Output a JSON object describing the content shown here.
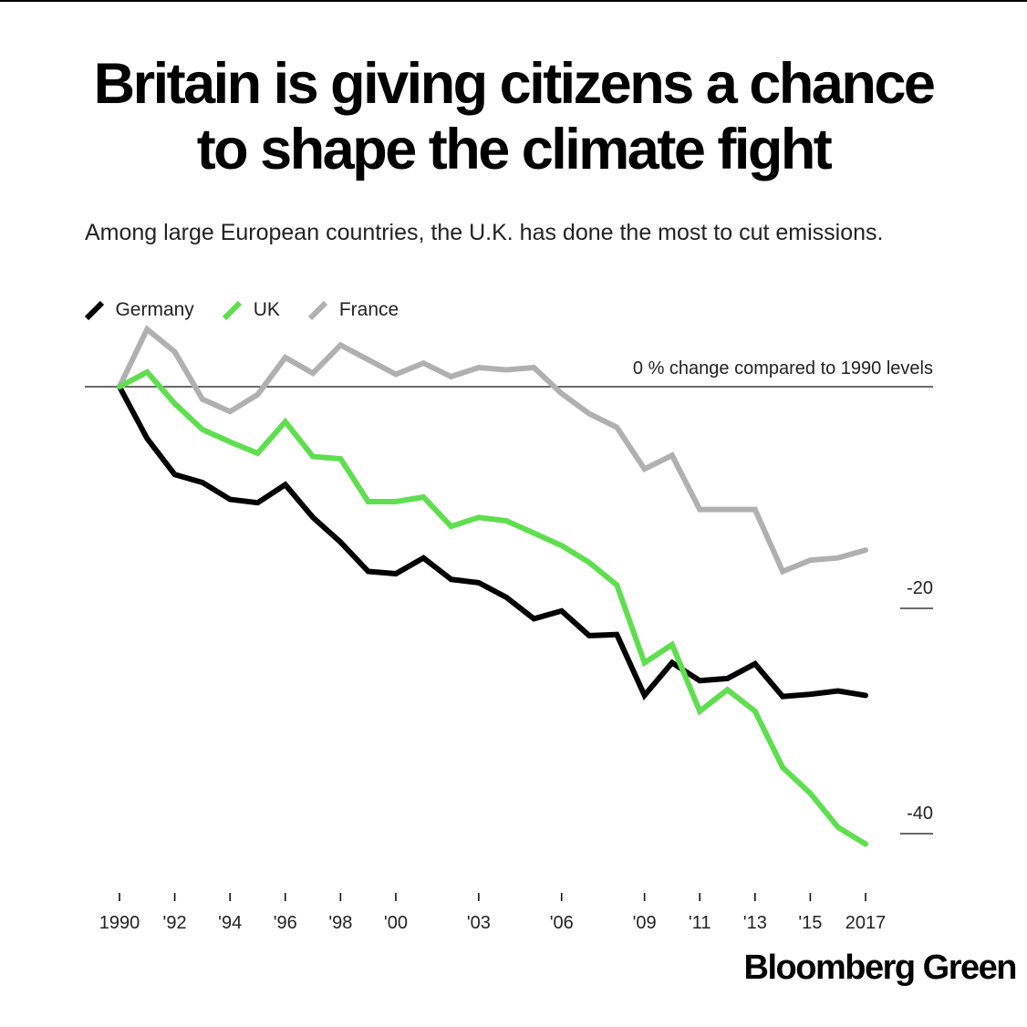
{
  "headline": {
    "line1": "Britain is giving citizens a chance",
    "line2": "to shape the climate fight"
  },
  "subtitle": "Among large European countries, the U.K. has done the most to cut emissions.",
  "brand": "Bloomberg Green",
  "colors": {
    "germany": "#000000",
    "uk": "#5fde4f",
    "france": "#b0b0b0",
    "axis": "#111111"
  },
  "chart_data": {
    "type": "line",
    "x": [
      1990,
      1991,
      1992,
      1993,
      1994,
      1995,
      1996,
      1997,
      1998,
      1999,
      2000,
      2001,
      2002,
      2003,
      2004,
      2005,
      2006,
      2007,
      2008,
      2009,
      2010,
      2011,
      2012,
      2013,
      2014,
      2015,
      2016,
      2017
    ],
    "xticks": [
      {
        "value": 1990,
        "label": "1990"
      },
      {
        "value": 1992,
        "label": "'92"
      },
      {
        "value": 1994,
        "label": "'94"
      },
      {
        "value": 1996,
        "label": "'96"
      },
      {
        "value": 1998,
        "label": "'98"
      },
      {
        "value": 2000,
        "label": "'00"
      },
      {
        "value": 2003,
        "label": "'03"
      },
      {
        "value": 2006,
        "label": "'06"
      },
      {
        "value": 2009,
        "label": "'09"
      },
      {
        "value": 2011,
        "label": "'11"
      },
      {
        "value": 2013,
        "label": "'13"
      },
      {
        "value": 2015,
        "label": "'15"
      },
      {
        "value": 2017,
        "label": "2017"
      }
    ],
    "yticks": [
      {
        "value": -20,
        "label": "-20"
      },
      {
        "value": -40,
        "label": "-40"
      }
    ],
    "ylim": [
      -44,
      5
    ],
    "reference_line": {
      "value": 0,
      "label": "0 % change compared to 1990 levels"
    },
    "legend_position": "top-left",
    "series": [
      {
        "name": "Germany",
        "color_key": "germany",
        "values": [
          0,
          -4.6,
          -7.8,
          -8.5,
          -10.0,
          -10.3,
          -8.7,
          -11.6,
          -13.8,
          -16.4,
          -16.6,
          -15.2,
          -17.1,
          -17.4,
          -18.7,
          -20.6,
          -19.9,
          -22.1,
          -22.0,
          -27.4,
          -24.5,
          -26.1,
          -25.9,
          -24.6,
          -27.5,
          -27.3,
          -27.0,
          -27.4
        ]
      },
      {
        "name": "UK",
        "color_key": "uk",
        "values": [
          0,
          1.3,
          -1.5,
          -3.8,
          -4.9,
          -5.9,
          -3.1,
          -6.2,
          -6.4,
          -10.2,
          -10.2,
          -9.8,
          -12.4,
          -11.6,
          -11.9,
          -13.0,
          -14.1,
          -15.6,
          -17.6,
          -24.5,
          -22.9,
          -28.8,
          -26.9,
          -28.8,
          -33.8,
          -36.1,
          -39.1,
          -40.6
        ]
      },
      {
        "name": "France",
        "color_key": "france",
        "values": [
          0,
          5.1,
          3.1,
          -1.1,
          -2.2,
          -0.7,
          2.6,
          1.2,
          3.7,
          2.4,
          1.1,
          2.1,
          0.9,
          1.7,
          1.5,
          1.7,
          -0.6,
          -2.4,
          -3.6,
          -7.3,
          -6.1,
          -10.9,
          -10.9,
          -10.9,
          -16.4,
          -15.4,
          -15.2,
          -14.5
        ]
      }
    ]
  }
}
